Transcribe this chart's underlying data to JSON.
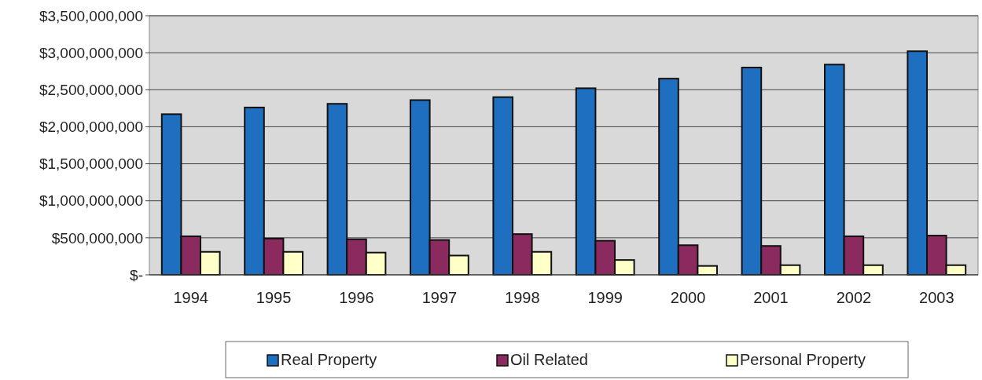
{
  "chart_data": {
    "type": "bar",
    "categories": [
      "1994",
      "1995",
      "1996",
      "1997",
      "1998",
      "1999",
      "2000",
      "2001",
      "2002",
      "2003"
    ],
    "series": [
      {
        "name": "Real Property",
        "color": "#1f6fc0",
        "values": [
          2170000000,
          2260000000,
          2310000000,
          2360000000,
          2400000000,
          2520000000,
          2650000000,
          2800000000,
          2840000000,
          3020000000
        ]
      },
      {
        "name": "Oil Related",
        "color": "#8b2a5e",
        "values": [
          520000000,
          490000000,
          480000000,
          470000000,
          550000000,
          460000000,
          400000000,
          390000000,
          520000000,
          530000000
        ]
      },
      {
        "name": "Personal Property",
        "color": "#ffffc8",
        "values": [
          310000000,
          310000000,
          300000000,
          260000000,
          310000000,
          200000000,
          120000000,
          130000000,
          130000000,
          130000000
        ]
      }
    ],
    "ylim": [
      0,
      3500000000
    ],
    "yticks": [
      {
        "value": 0,
        "label": "$-"
      },
      {
        "value": 500000000,
        "label": "$500,000,000"
      },
      {
        "value": 1000000000,
        "label": "$1,000,000,000"
      },
      {
        "value": 1500000000,
        "label": "$1,500,000,000"
      },
      {
        "value": 2000000000,
        "label": "$2,000,000,000"
      },
      {
        "value": 2500000000,
        "label": "$2,500,000,000"
      },
      {
        "value": 3000000000,
        "label": "$3,000,000,000"
      },
      {
        "value": 3500000000,
        "label": "$3,500,000,000"
      }
    ],
    "grid": "y",
    "legend": "bottom"
  }
}
